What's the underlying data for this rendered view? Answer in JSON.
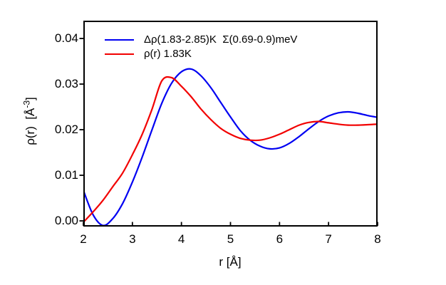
{
  "figure": {
    "background": "#ffffff",
    "axis_color": "#000000",
    "text_color": "#000000"
  },
  "chart_data": {
    "type": "line",
    "title": "",
    "xlabel": "r [Å]",
    "ylabel": "ρ(r)  [Å⁻³]",
    "ylabel_parts": {
      "main": "ρ(r)  [Å",
      "sup": "-3",
      "close": "]"
    },
    "xlim": [
      2,
      8
    ],
    "ylim": [
      -0.0012,
      0.044
    ],
    "grid": false,
    "legend_position": "top-left-inside",
    "x_ticks": [
      2,
      3,
      4,
      5,
      6,
      7,
      8
    ],
    "x_tick_labels": [
      "2",
      "3",
      "4",
      "5",
      "6",
      "7",
      "8"
    ],
    "y_ticks": [
      0,
      0.01,
      0.02,
      0.03,
      0.04
    ],
    "y_tick_labels": [
      "0.00",
      "0.01",
      "0.02",
      "0.03",
      "0.04"
    ],
    "x": [
      2.0,
      2.2,
      2.4,
      2.6,
      2.8,
      3.0,
      3.2,
      3.4,
      3.6,
      3.8,
      4.0,
      4.2,
      4.4,
      4.6,
      4.8,
      5.0,
      5.2,
      5.4,
      5.6,
      5.8,
      6.0,
      6.2,
      6.4,
      6.6,
      6.8,
      7.0,
      7.2,
      7.4,
      7.6,
      7.8,
      8.0
    ],
    "series": [
      {
        "name": "Δρ(1.83-2.85)K  Σ(0.69-0.9)meV",
        "color": "#0000F2",
        "values": [
          0.0067,
          0.0013,
          -0.001,
          0.0005,
          0.0038,
          0.0085,
          0.014,
          0.02,
          0.0258,
          0.0302,
          0.0327,
          0.0333,
          0.0318,
          0.0292,
          0.026,
          0.0228,
          0.0198,
          0.0177,
          0.0164,
          0.0158,
          0.016,
          0.017,
          0.0185,
          0.0202,
          0.0218,
          0.023,
          0.0237,
          0.0239,
          0.0236,
          0.0231,
          0.0227
        ]
      },
      {
        "name": "ρ(r) 1.83K",
        "color": "#F20000",
        "values": [
          -0.0003,
          0.002,
          0.0045,
          0.0075,
          0.0105,
          0.0145,
          0.019,
          0.0245,
          0.0307,
          0.0314,
          0.0295,
          0.0272,
          0.0245,
          0.0222,
          0.0203,
          0.019,
          0.0181,
          0.0177,
          0.0177,
          0.0182,
          0.019,
          0.02,
          0.021,
          0.0216,
          0.0218,
          0.0215,
          0.0212,
          0.021,
          0.021,
          0.0211,
          0.0212
        ]
      }
    ]
  }
}
